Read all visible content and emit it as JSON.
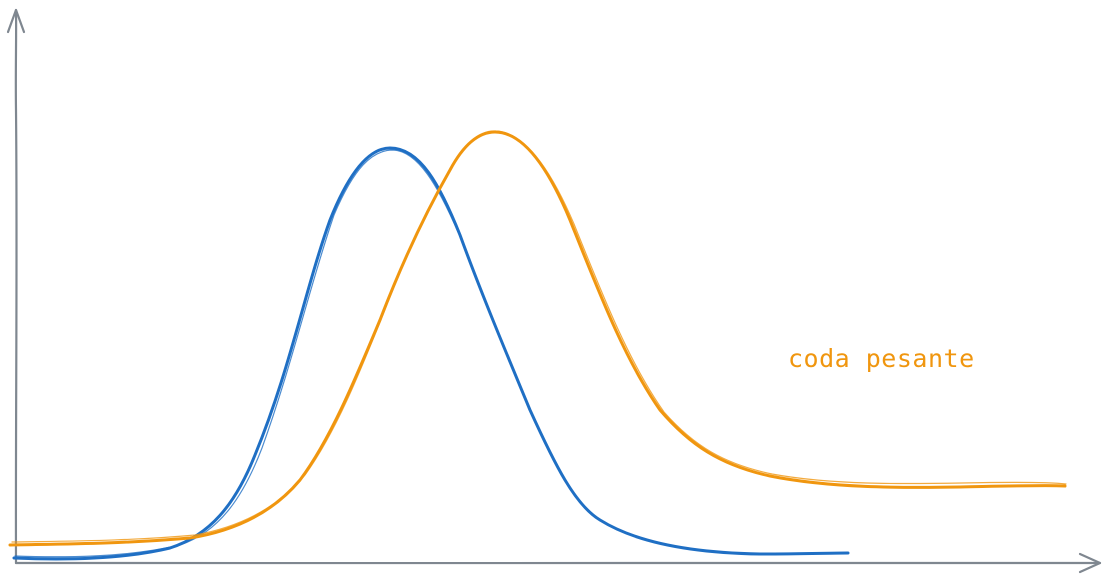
{
  "colors": {
    "axis": "#7f8790",
    "normal_curve": "#1f6fc4",
    "heavy_tail_curve": "#f0960f"
  },
  "annotation": {
    "text": "coda pesante"
  }
}
